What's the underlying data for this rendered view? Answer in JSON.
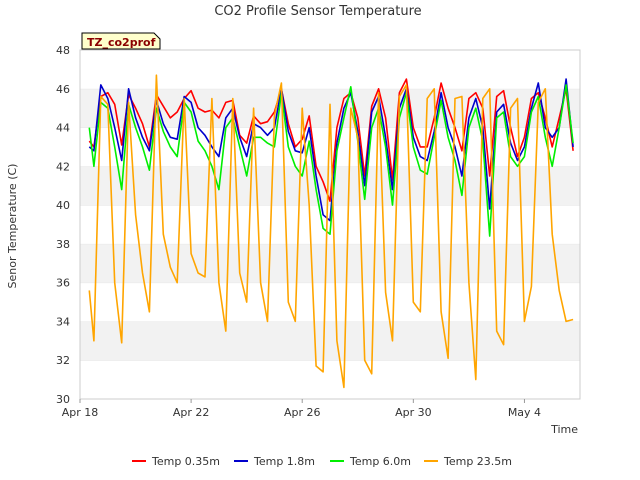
{
  "chart_data": {
    "type": "line",
    "title": "CO2 Profile Sensor Temperature",
    "xlabel": "Time",
    "ylabel": "Senor Temperature (C)",
    "tag": "TZ_co2prof",
    "ylim": [
      30,
      48
    ],
    "yticks": [
      30,
      32,
      34,
      36,
      38,
      40,
      42,
      44,
      46,
      48
    ],
    "xlim": [
      "2024-04-18",
      "2024-05-06"
    ],
    "xticks": [
      {
        "date": "2024-04-18",
        "label": "Apr 18"
      },
      {
        "date": "2024-04-22",
        "label": "Apr 22"
      },
      {
        "date": "2024-04-26",
        "label": "Apr 26"
      },
      {
        "date": "2024-04-30",
        "label": "Apr 30"
      },
      {
        "date": "2024-05-04",
        "label": "May 4"
      }
    ],
    "grid": "horizontal bands",
    "legend_position": "bottom",
    "series": [
      {
        "name": "Temp 0.35m",
        "color": "#ff0000",
        "x": [
          "2024-04-18 08:00",
          "2024-04-18 12:00",
          "2024-04-18 18:00",
          "2024-04-19 00:00",
          "2024-04-19 06:00",
          "2024-04-19 12:00",
          "2024-04-19 18:00",
          "2024-04-20 00:00",
          "2024-04-20 06:00",
          "2024-04-20 12:00",
          "2024-04-20 18:00",
          "2024-04-21 00:00",
          "2024-04-21 06:00",
          "2024-04-21 12:00",
          "2024-04-21 18:00",
          "2024-04-22 00:00",
          "2024-04-22 06:00",
          "2024-04-22 12:00",
          "2024-04-22 18:00",
          "2024-04-23 00:00",
          "2024-04-23 06:00",
          "2024-04-23 12:00",
          "2024-04-23 18:00",
          "2024-04-24 00:00",
          "2024-04-24 06:00",
          "2024-04-24 12:00",
          "2024-04-24 18:00",
          "2024-04-25 00:00",
          "2024-04-25 06:00",
          "2024-04-25 12:00",
          "2024-04-25 18:00",
          "2024-04-26 00:00",
          "2024-04-26 06:00",
          "2024-04-26 12:00",
          "2024-04-26 18:00",
          "2024-04-27 00:00",
          "2024-04-27 06:00",
          "2024-04-27 12:00",
          "2024-04-27 18:00",
          "2024-04-28 00:00",
          "2024-04-28 06:00",
          "2024-04-28 12:00",
          "2024-04-28 18:00",
          "2024-04-29 00:00",
          "2024-04-29 06:00",
          "2024-04-29 12:00",
          "2024-04-29 18:00",
          "2024-04-30 00:00",
          "2024-04-30 06:00",
          "2024-04-30 12:00",
          "2024-04-30 18:00",
          "2024-05-01 00:00",
          "2024-05-01 06:00",
          "2024-05-01 12:00",
          "2024-05-01 18:00",
          "2024-05-02 00:00",
          "2024-05-02 06:00",
          "2024-05-02 12:00",
          "2024-05-02 18:00",
          "2024-05-03 00:00",
          "2024-05-03 06:00",
          "2024-05-03 12:00",
          "2024-05-03 18:00",
          "2024-05-04 00:00",
          "2024-05-04 06:00",
          "2024-05-04 12:00",
          "2024-05-04 18:00",
          "2024-05-05 00:00",
          "2024-05-05 06:00",
          "2024-05-05 12:00",
          "2024-05-05 18:00"
        ],
        "y": [
          43.3,
          43.0,
          45.6,
          45.8,
          45.2,
          43.1,
          45.7,
          45.0,
          44.2,
          43.0,
          45.7,
          45.1,
          44.5,
          44.8,
          45.5,
          45.9,
          45.0,
          44.8,
          44.9,
          44.5,
          45.3,
          45.4,
          43.6,
          43.2,
          44.6,
          44.2,
          44.3,
          44.8,
          46.0,
          44.2,
          43.0,
          43.4,
          44.6,
          42.0,
          41.2,
          40.2,
          44.0,
          45.5,
          45.8,
          44.5,
          41.5,
          45.1,
          46.0,
          44.5,
          41.3,
          45.8,
          46.5,
          44.0,
          43.0,
          43.0,
          44.5,
          46.3,
          45.0,
          44.0,
          42.8,
          45.5,
          45.8,
          45.0,
          41.5,
          45.6,
          45.9,
          44.0,
          42.5,
          43.5,
          45.5,
          45.8,
          44.5,
          43.0,
          44.5,
          46.0,
          42.8
        ]
      },
      {
        "name": "Temp 1.8m",
        "color": "#0000cc",
        "x": [
          "2024-04-18 08:00",
          "2024-04-18 12:00",
          "2024-04-18 18:00",
          "2024-04-19 00:00",
          "2024-04-19 06:00",
          "2024-04-19 12:00",
          "2024-04-19 18:00",
          "2024-04-20 00:00",
          "2024-04-20 06:00",
          "2024-04-20 12:00",
          "2024-04-20 18:00",
          "2024-04-21 00:00",
          "2024-04-21 06:00",
          "2024-04-21 12:00",
          "2024-04-21 18:00",
          "2024-04-22 00:00",
          "2024-04-22 06:00",
          "2024-04-22 12:00",
          "2024-04-22 18:00",
          "2024-04-23 00:00",
          "2024-04-23 06:00",
          "2024-04-23 12:00",
          "2024-04-23 18:00",
          "2024-04-24 00:00",
          "2024-04-24 06:00",
          "2024-04-24 12:00",
          "2024-04-24 18:00",
          "2024-04-25 00:00",
          "2024-04-25 06:00",
          "2024-04-25 12:00",
          "2024-04-25 18:00",
          "2024-04-26 00:00",
          "2024-04-26 06:00",
          "2024-04-26 12:00",
          "2024-04-26 18:00",
          "2024-04-27 00:00",
          "2024-04-27 06:00",
          "2024-04-27 12:00",
          "2024-04-27 18:00",
          "2024-04-28 00:00",
          "2024-04-28 06:00",
          "2024-04-28 12:00",
          "2024-04-28 18:00",
          "2024-04-29 00:00",
          "2024-04-29 06:00",
          "2024-04-29 12:00",
          "2024-04-29 18:00",
          "2024-04-30 00:00",
          "2024-04-30 06:00",
          "2024-04-30 12:00",
          "2024-04-30 18:00",
          "2024-05-01 00:00",
          "2024-05-01 06:00",
          "2024-05-01 12:00",
          "2024-05-01 18:00",
          "2024-05-02 00:00",
          "2024-05-02 06:00",
          "2024-05-02 12:00",
          "2024-05-02 18:00",
          "2024-05-03 00:00",
          "2024-05-03 06:00",
          "2024-05-03 12:00",
          "2024-05-03 18:00",
          "2024-05-04 00:00",
          "2024-05-04 06:00",
          "2024-05-04 12:00",
          "2024-05-04 18:00",
          "2024-05-05 00:00",
          "2024-05-05 06:00",
          "2024-05-05 12:00",
          "2024-05-05 18:00"
        ],
        "y": [
          43.0,
          42.8,
          46.2,
          45.5,
          44.0,
          42.3,
          46.0,
          44.5,
          43.5,
          42.8,
          45.4,
          44.2,
          43.5,
          43.4,
          45.6,
          45.3,
          44.0,
          43.6,
          43.0,
          42.5,
          44.5,
          45.0,
          43.5,
          42.5,
          44.2,
          44.0,
          43.6,
          44.0,
          46.0,
          43.8,
          42.8,
          42.7,
          44.0,
          41.5,
          39.5,
          39.2,
          43.2,
          45.0,
          45.8,
          43.8,
          41.0,
          44.8,
          45.6,
          43.5,
          40.8,
          45.0,
          46.0,
          43.5,
          42.5,
          42.3,
          43.8,
          45.8,
          44.0,
          43.0,
          41.5,
          44.5,
          45.5,
          44.0,
          39.8,
          44.8,
          45.2,
          43.2,
          42.3,
          43.0,
          45.0,
          46.3,
          44.0,
          43.5,
          44.0,
          46.5,
          43.0
        ]
      },
      {
        "name": "Temp 6.0m",
        "color": "#00ee00",
        "x": [
          "2024-04-18 08:00",
          "2024-04-18 12:00",
          "2024-04-18 18:00",
          "2024-04-19 00:00",
          "2024-04-19 06:00",
          "2024-04-19 12:00",
          "2024-04-19 18:00",
          "2024-04-20 00:00",
          "2024-04-20 06:00",
          "2024-04-20 12:00",
          "2024-04-20 18:00",
          "2024-04-21 00:00",
          "2024-04-21 06:00",
          "2024-04-21 12:00",
          "2024-04-21 18:00",
          "2024-04-22 00:00",
          "2024-04-22 06:00",
          "2024-04-22 12:00",
          "2024-04-22 18:00",
          "2024-04-23 00:00",
          "2024-04-23 06:00",
          "2024-04-23 12:00",
          "2024-04-23 18:00",
          "2024-04-24 00:00",
          "2024-04-24 06:00",
          "2024-04-24 12:00",
          "2024-04-24 18:00",
          "2024-04-25 00:00",
          "2024-04-25 06:00",
          "2024-04-25 12:00",
          "2024-04-25 18:00",
          "2024-04-26 00:00",
          "2024-04-26 06:00",
          "2024-04-26 12:00",
          "2024-04-26 18:00",
          "2024-04-27 00:00",
          "2024-04-27 06:00",
          "2024-04-27 12:00",
          "2024-04-27 18:00",
          "2024-04-28 00:00",
          "2024-04-28 06:00",
          "2024-04-28 12:00",
          "2024-04-28 18:00",
          "2024-04-29 00:00",
          "2024-04-29 06:00",
          "2024-04-29 12:00",
          "2024-04-29 18:00",
          "2024-04-30 00:00",
          "2024-04-30 06:00",
          "2024-04-30 12:00",
          "2024-04-30 18:00",
          "2024-05-01 00:00",
          "2024-05-01 06:00",
          "2024-05-01 12:00",
          "2024-05-01 18:00",
          "2024-05-02 00:00",
          "2024-05-02 06:00",
          "2024-05-02 12:00",
          "2024-05-02 18:00",
          "2024-05-03 00:00",
          "2024-05-03 06:00",
          "2024-05-03 12:00",
          "2024-05-03 18:00",
          "2024-05-04 00:00",
          "2024-05-04 06:00",
          "2024-05-04 12:00",
          "2024-05-04 18:00",
          "2024-05-05 00:00",
          "2024-05-05 06:00",
          "2024-05-05 12:00",
          "2024-05-05 18:00"
        ],
        "y": [
          44.0,
          42.0,
          45.3,
          45.0,
          43.0,
          40.8,
          45.2,
          44.0,
          43.0,
          41.8,
          45.0,
          43.8,
          43.0,
          42.5,
          45.3,
          44.8,
          43.3,
          42.8,
          42.0,
          40.8,
          44.0,
          44.5,
          43.0,
          41.5,
          43.5,
          43.5,
          43.2,
          43.0,
          45.8,
          43.0,
          42.0,
          41.5,
          43.3,
          40.8,
          38.8,
          38.5,
          42.8,
          44.5,
          46.1,
          43.3,
          40.3,
          44.0,
          45.0,
          43.0,
          40.0,
          44.5,
          45.8,
          43.0,
          41.8,
          41.6,
          43.5,
          45.4,
          43.5,
          42.3,
          40.5,
          44.0,
          45.0,
          43.3,
          38.4,
          44.5,
          44.8,
          42.5,
          42.0,
          42.5,
          44.8,
          45.6,
          43.5,
          42.0,
          44.0,
          46.2,
          43.2
        ]
      },
      {
        "name": "Temp 23.5m",
        "color": "#ffa500",
        "x": [
          "2024-04-18 08:00",
          "2024-04-18 12:00",
          "2024-04-18 18:00",
          "2024-04-19 00:00",
          "2024-04-19 06:00",
          "2024-04-19 12:00",
          "2024-04-19 18:00",
          "2024-04-20 00:00",
          "2024-04-20 06:00",
          "2024-04-20 12:00",
          "2024-04-20 18:00",
          "2024-04-21 00:00",
          "2024-04-21 06:00",
          "2024-04-21 12:00",
          "2024-04-21 18:00",
          "2024-04-22 00:00",
          "2024-04-22 06:00",
          "2024-04-22 12:00",
          "2024-04-22 18:00",
          "2024-04-23 00:00",
          "2024-04-23 06:00",
          "2024-04-23 12:00",
          "2024-04-23 18:00",
          "2024-04-24 00:00",
          "2024-04-24 06:00",
          "2024-04-24 12:00",
          "2024-04-24 18:00",
          "2024-04-25 00:00",
          "2024-04-25 06:00",
          "2024-04-25 12:00",
          "2024-04-25 18:00",
          "2024-04-26 00:00",
          "2024-04-26 06:00",
          "2024-04-26 12:00",
          "2024-04-26 18:00",
          "2024-04-27 00:00",
          "2024-04-27 06:00",
          "2024-04-27 12:00",
          "2024-04-27 18:00",
          "2024-04-28 00:00",
          "2024-04-28 06:00",
          "2024-04-28 12:00",
          "2024-04-28 18:00",
          "2024-04-29 00:00",
          "2024-04-29 06:00",
          "2024-04-29 12:00",
          "2024-04-29 18:00",
          "2024-04-30 00:00",
          "2024-04-30 06:00",
          "2024-04-30 12:00",
          "2024-04-30 18:00",
          "2024-05-01 00:00",
          "2024-05-01 06:00",
          "2024-05-01 12:00",
          "2024-05-01 18:00",
          "2024-05-02 00:00",
          "2024-05-02 06:00",
          "2024-05-02 12:00",
          "2024-05-02 18:00",
          "2024-05-03 00:00",
          "2024-05-03 06:00",
          "2024-05-03 12:00",
          "2024-05-03 18:00",
          "2024-05-04 00:00",
          "2024-05-04 06:00",
          "2024-05-04 12:00",
          "2024-05-04 18:00",
          "2024-05-05 00:00",
          "2024-05-05 06:00",
          "2024-05-05 12:00",
          "2024-05-05 18:00"
        ],
        "y": [
          35.6,
          33.0,
          45.6,
          45.2,
          36.0,
          32.9,
          45.3,
          39.5,
          36.5,
          34.5,
          46.7,
          38.5,
          36.8,
          36.0,
          45.5,
          37.5,
          36.5,
          36.3,
          45.5,
          36.0,
          33.5,
          45.5,
          36.5,
          35.0,
          45.0,
          36.0,
          34.0,
          44.6,
          46.3,
          35.0,
          34.0,
          45.0,
          40.0,
          31.7,
          31.4,
          45.2,
          33.0,
          30.6,
          45.0,
          43.5,
          32.0,
          31.3,
          45.8,
          35.5,
          33.0,
          45.6,
          46.2,
          35.0,
          34.5,
          45.5,
          46.0,
          34.5,
          32.1,
          45.5,
          45.6,
          36.0,
          31.0,
          45.5,
          46.0,
          33.5,
          32.8,
          45.0,
          45.5,
          34.0,
          35.8,
          45.3,
          46.0,
          38.5,
          35.6,
          34.0,
          34.1
        ]
      }
    ]
  }
}
